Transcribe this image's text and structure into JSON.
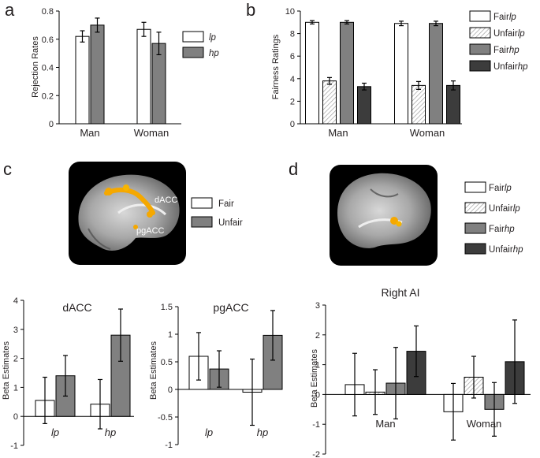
{
  "colors": {
    "fair": "#ffffff",
    "unfair": "#808080",
    "dark": "#3c3c3c",
    "stroke": "#000000",
    "brain_blob": "#f5a800"
  },
  "panels": {
    "a": "a",
    "b": "b",
    "c": "c",
    "d": "d"
  },
  "brain_labels": {
    "dacc": "dACC",
    "pgacc": "pgACC"
  },
  "chart_data": [
    {
      "id": "a",
      "type": "bar",
      "title": "",
      "xlabel": "",
      "ylabel": "Rejection Rates",
      "ylim": [
        0,
        0.8
      ],
      "yticks": [
        "0",
        "0.2",
        "0.4",
        "0.6",
        "0.8"
      ],
      "categories": [
        "Man",
        "Woman"
      ],
      "legend": [
        "lp",
        "hp"
      ],
      "series": [
        {
          "name": "lp",
          "style": "white",
          "values": [
            0.62,
            0.67
          ],
          "errors": [
            0.04,
            0.05
          ]
        },
        {
          "name": "hp",
          "style": "gray",
          "values": [
            0.7,
            0.57
          ],
          "errors": [
            0.05,
            0.08
          ]
        }
      ]
    },
    {
      "id": "b",
      "type": "bar",
      "title": "",
      "xlabel": "",
      "ylabel": "Fairness Ratings",
      "ylim": [
        0,
        10
      ],
      "yticks": [
        "0",
        "2",
        "4",
        "6",
        "8",
        "10"
      ],
      "categories": [
        "Man",
        "Woman"
      ],
      "legend": [
        {
          "prefix": "Fair",
          "suffix": "lp"
        },
        {
          "prefix": "Unfair",
          "suffix": "lp"
        },
        {
          "prefix": "Fair",
          "suffix": "hp"
        },
        {
          "prefix": "Unfair",
          "suffix": "hp"
        }
      ],
      "series": [
        {
          "name": "Fair lp",
          "style": "white",
          "values": [
            9.0,
            8.9
          ],
          "errors": [
            0.15,
            0.2
          ]
        },
        {
          "name": "Unfair lp",
          "style": "hatch",
          "values": [
            3.8,
            3.4
          ],
          "errors": [
            0.3,
            0.35
          ]
        },
        {
          "name": "Fair hp",
          "style": "gray",
          "values": [
            9.0,
            8.9
          ],
          "errors": [
            0.15,
            0.2
          ]
        },
        {
          "name": "Unfair hp",
          "style": "dark",
          "values": [
            3.3,
            3.4
          ],
          "errors": [
            0.3,
            0.4
          ]
        }
      ]
    },
    {
      "id": "c1",
      "type": "bar",
      "title": "dACC",
      "xlabel": "",
      "ylabel": "Beta Estimates",
      "ylim": [
        -1,
        4
      ],
      "yticks": [
        "-1",
        "0",
        "1",
        "2",
        "3",
        "4"
      ],
      "categories": [
        "lp",
        "hp"
      ],
      "legend": [
        "Fair",
        "Unfair"
      ],
      "series": [
        {
          "name": "Fair",
          "style": "white",
          "values": [
            0.55,
            0.42
          ],
          "errors": [
            0.8,
            0.85
          ]
        },
        {
          "name": "Unfair",
          "style": "gray",
          "values": [
            1.4,
            2.8
          ],
          "errors": [
            0.7,
            0.9
          ]
        }
      ]
    },
    {
      "id": "c2",
      "type": "bar",
      "title": "pgACC",
      "xlabel": "",
      "ylabel": "Beta Estimates",
      "ylim": [
        -1,
        1.5
      ],
      "yticks": [
        "-1",
        "-0.5",
        "0",
        "0.5",
        "1",
        "1.5"
      ],
      "categories": [
        "lp",
        "hp"
      ],
      "legend": [
        "Fair",
        "Unfair"
      ],
      "series": [
        {
          "name": "Fair",
          "style": "white",
          "values": [
            0.6,
            -0.05
          ],
          "errors": [
            0.43,
            0.6
          ]
        },
        {
          "name": "Unfair",
          "style": "gray",
          "values": [
            0.37,
            0.98
          ],
          "errors": [
            0.33,
            0.45
          ]
        }
      ]
    },
    {
      "id": "d",
      "type": "bar",
      "title": "Right AI",
      "xlabel": "",
      "ylabel": "Beta Estimates",
      "ylim": [
        -2,
        3
      ],
      "yticks": [
        "-2",
        "-1",
        "0",
        "1",
        "2",
        "3"
      ],
      "categories": [
        "Man",
        "Woman"
      ],
      "legend": [
        {
          "prefix": "Fair",
          "suffix": "lp"
        },
        {
          "prefix": "Unfair",
          "suffix": "lp"
        },
        {
          "prefix": "Fair",
          "suffix": "hp"
        },
        {
          "prefix": "Unfair",
          "suffix": "hp"
        }
      ],
      "series": [
        {
          "name": "Fair lp",
          "style": "white",
          "values": [
            0.33,
            -0.58
          ],
          "errors": [
            1.05,
            0.95
          ]
        },
        {
          "name": "Unfair lp",
          "style": "hatch",
          "values": [
            0.08,
            0.58
          ],
          "errors": [
            0.75,
            0.7
          ]
        },
        {
          "name": "Fair hp",
          "style": "gray",
          "values": [
            0.38,
            -0.5
          ],
          "errors": [
            1.2,
            0.9
          ]
        },
        {
          "name": "Unfair hp",
          "style": "dark",
          "values": [
            1.45,
            1.1
          ],
          "errors": [
            0.85,
            1.4
          ]
        }
      ]
    }
  ]
}
